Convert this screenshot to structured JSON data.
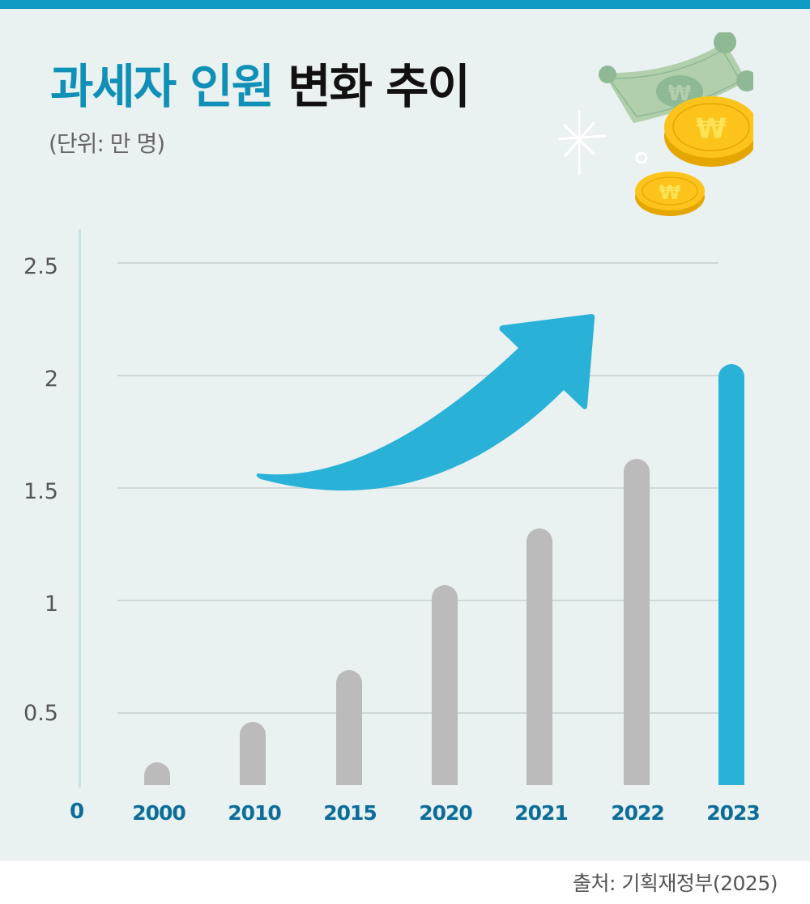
{
  "header": {
    "title_accent": "과세자 인원",
    "title_rest": "변화 추이",
    "unit": "(단위: 만 명)"
  },
  "footer": {
    "source": "출처: 기획재정부(2025)"
  },
  "colors": {
    "top_bar": "#0f9bc3",
    "background": "#e9f1f1",
    "title_accent": "#1090b6",
    "bar_default": "#bbbbbb",
    "bar_highlight": "#29b1d8",
    "axis_label": "#0d6d99"
  },
  "axis": {
    "y_ticks": [
      "2.5",
      "2",
      "1.5",
      "1",
      "0.5"
    ],
    "zero_label": "0"
  },
  "illustration": {
    "icons": [
      "banknote-won-icon",
      "gold-coin-won-icon",
      "gold-coin-won-icon",
      "sparkle-icon",
      "trend-up-arrow-icon"
    ]
  },
  "chart_data": {
    "type": "bar",
    "title": "과세자 인원 변화 추이",
    "subtitle": "(단위: 만 명)",
    "xlabel": "",
    "ylabel": "만 명",
    "categories": [
      "2000",
      "2010",
      "2015",
      "2020",
      "2021",
      "2022",
      "2023"
    ],
    "values": [
      0.28,
      0.46,
      0.69,
      1.07,
      1.32,
      1.63,
      2.05
    ],
    "highlight": "2023",
    "ylim": [
      0,
      2.5
    ],
    "y_ticks": [
      0,
      0.5,
      1,
      1.5,
      2,
      2.5
    ],
    "grid": true,
    "legend": null,
    "annotations": [
      "upward trend arrow"
    ],
    "source": "출처: 기획재정부(2025)"
  }
}
